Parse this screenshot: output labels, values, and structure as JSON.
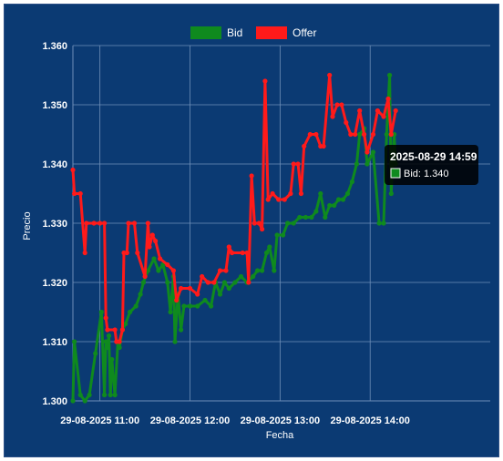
{
  "colors": {
    "background": "#0b3a73",
    "grid": "#6f8fb8",
    "bid": "#0f8a1e",
    "offer": "#ff1a1a",
    "text": "#ffffff",
    "tooltip_bg": "#000000"
  },
  "chart_data": {
    "type": "line",
    "title": "",
    "xlabel": "Fecha",
    "ylabel": "Precio",
    "x_range": [
      "2025-08-29 10:42",
      "2025-08-29 15:20"
    ],
    "ylim": [
      1.3,
      1.36
    ],
    "y_ticks": [
      "1.300",
      "1.310",
      "1.320",
      "1.330",
      "1.340",
      "1.350",
      "1.360"
    ],
    "x_ticks": [
      {
        "t": "2025-08-29 11:00",
        "label": "29-08-2025 11:00"
      },
      {
        "t": "2025-08-29 12:00",
        "label": "29-08-2025 12:00"
      },
      {
        "t": "2025-08-29 13:00",
        "label": "29-08-2025 13:00"
      },
      {
        "t": "2025-08-29 14:00",
        "label": "29-08-2025 14:00"
      }
    ],
    "grid": true,
    "legend_position": "top-center",
    "legend": [
      "Bid",
      "Offer"
    ],
    "series": [
      {
        "name": "Bid",
        "points": [
          [
            "2025-08-29 10:42",
            1.3
          ],
          [
            "2025-08-29 10:43",
            1.31
          ],
          [
            "2025-08-29 10:47",
            1.301
          ],
          [
            "2025-08-29 10:50",
            1.3
          ],
          [
            "2025-08-29 10:53",
            1.301
          ],
          [
            "2025-08-29 10:57",
            1.308
          ],
          [
            "2025-08-29 11:01",
            1.315
          ],
          [
            "2025-08-29 11:03",
            1.301
          ],
          [
            "2025-08-29 11:04",
            1.31
          ],
          [
            "2025-08-29 11:05",
            1.309
          ],
          [
            "2025-08-29 11:06",
            1.311
          ],
          [
            "2025-08-29 11:07",
            1.301
          ],
          [
            "2025-08-29 11:08",
            1.307
          ],
          [
            "2025-08-29 11:10",
            1.301
          ],
          [
            "2025-08-29 11:12",
            1.31
          ],
          [
            "2025-08-29 11:13",
            1.309
          ],
          [
            "2025-08-29 11:15",
            1.312
          ],
          [
            "2025-08-29 11:17",
            1.313
          ],
          [
            "2025-08-29 11:20",
            1.315
          ],
          [
            "2025-08-29 11:24",
            1.316
          ],
          [
            "2025-08-29 11:27",
            1.318
          ],
          [
            "2025-08-29 11:29",
            1.32
          ],
          [
            "2025-08-29 11:32",
            1.322
          ],
          [
            "2025-08-29 11:36",
            1.324
          ],
          [
            "2025-08-29 11:39",
            1.322
          ],
          [
            "2025-08-29 11:42",
            1.323
          ],
          [
            "2025-08-29 11:45",
            1.32
          ],
          [
            "2025-08-29 11:47",
            1.315
          ],
          [
            "2025-08-29 11:49",
            1.321
          ],
          [
            "2025-08-29 11:50",
            1.31
          ],
          [
            "2025-08-29 11:52",
            1.318
          ],
          [
            "2025-08-29 11:54",
            1.312
          ],
          [
            "2025-08-29 11:56",
            1.316
          ],
          [
            "2025-08-29 12:00",
            1.316
          ],
          [
            "2025-08-29 12:05",
            1.316
          ],
          [
            "2025-08-29 12:10",
            1.317
          ],
          [
            "2025-08-29 12:14",
            1.316
          ],
          [
            "2025-08-29 12:17",
            1.32
          ],
          [
            "2025-08-29 12:20",
            1.318
          ],
          [
            "2025-08-29 12:23",
            1.32
          ],
          [
            "2025-08-29 12:26",
            1.319
          ],
          [
            "2025-08-29 12:30",
            1.32
          ],
          [
            "2025-08-29 12:34",
            1.321
          ],
          [
            "2025-08-29 12:38",
            1.32
          ],
          [
            "2025-08-29 12:42",
            1.321
          ],
          [
            "2025-08-29 12:45",
            1.322
          ],
          [
            "2025-08-29 12:48",
            1.322
          ],
          [
            "2025-08-29 12:51",
            1.325
          ],
          [
            "2025-08-29 12:53",
            1.326
          ],
          [
            "2025-08-29 12:56",
            1.322
          ],
          [
            "2025-08-29 12:58",
            1.328
          ],
          [
            "2025-08-29 13:02",
            1.328
          ],
          [
            "2025-08-29 13:05",
            1.33
          ],
          [
            "2025-08-29 13:09",
            1.33
          ],
          [
            "2025-08-29 13:13",
            1.331
          ],
          [
            "2025-08-29 13:17",
            1.331
          ],
          [
            "2025-08-29 13:21",
            1.331
          ],
          [
            "2025-08-29 13:24",
            1.332
          ],
          [
            "2025-08-29 13:27",
            1.335
          ],
          [
            "2025-08-29 13:30",
            1.331
          ],
          [
            "2025-08-29 13:33",
            1.333
          ],
          [
            "2025-08-29 13:36",
            1.333
          ],
          [
            "2025-08-29 13:39",
            1.334
          ],
          [
            "2025-08-29 13:42",
            1.334
          ],
          [
            "2025-08-29 13:45",
            1.335
          ],
          [
            "2025-08-29 13:48",
            1.337
          ],
          [
            "2025-08-29 13:51",
            1.34
          ],
          [
            "2025-08-29 13:53",
            1.345
          ],
          [
            "2025-08-29 13:56",
            1.346
          ],
          [
            "2025-08-29 13:58",
            1.34
          ],
          [
            "2025-08-29 14:02",
            1.342
          ],
          [
            "2025-08-29 14:06",
            1.33
          ],
          [
            "2025-08-29 14:09",
            1.33
          ],
          [
            "2025-08-29 14:11",
            1.345
          ],
          [
            "2025-08-29 14:13",
            1.355
          ],
          [
            "2025-08-29 14:14",
            1.335
          ],
          [
            "2025-08-29 14:16",
            1.345
          ],
          [
            "2025-08-29 14:17",
            1.34
          ]
        ]
      },
      {
        "name": "Offer",
        "points": [
          [
            "2025-08-29 10:42",
            1.339
          ],
          [
            "2025-08-29 10:43",
            1.335
          ],
          [
            "2025-08-29 10:47",
            1.335
          ],
          [
            "2025-08-29 10:50",
            1.325
          ],
          [
            "2025-08-29 10:51",
            1.33
          ],
          [
            "2025-08-29 10:56",
            1.33
          ],
          [
            "2025-08-29 11:00",
            1.33
          ],
          [
            "2025-08-29 11:03",
            1.33
          ],
          [
            "2025-08-29 11:04",
            1.314
          ],
          [
            "2025-08-29 11:05",
            1.312
          ],
          [
            "2025-08-29 11:10",
            1.312
          ],
          [
            "2025-08-29 11:11",
            1.31
          ],
          [
            "2025-08-29 11:13",
            1.31
          ],
          [
            "2025-08-29 11:15",
            1.312
          ],
          [
            "2025-08-29 11:16",
            1.325
          ],
          [
            "2025-08-29 11:18",
            1.325
          ],
          [
            "2025-08-29 11:19",
            1.33
          ],
          [
            "2025-08-29 11:23",
            1.33
          ],
          [
            "2025-08-29 11:25",
            1.325
          ],
          [
            "2025-08-29 11:30",
            1.321
          ],
          [
            "2025-08-29 11:32",
            1.33
          ],
          [
            "2025-08-29 11:33",
            1.326
          ],
          [
            "2025-08-29 11:35",
            1.328
          ],
          [
            "2025-08-29 11:37",
            1.327
          ],
          [
            "2025-08-29 11:40",
            1.324
          ],
          [
            "2025-08-29 11:45",
            1.323
          ],
          [
            "2025-08-29 11:49",
            1.322
          ],
          [
            "2025-08-29 11:51",
            1.317
          ],
          [
            "2025-08-29 11:54",
            1.319
          ],
          [
            "2025-08-29 12:00",
            1.319
          ],
          [
            "2025-08-29 12:05",
            1.318
          ],
          [
            "2025-08-29 12:08",
            1.321
          ],
          [
            "2025-08-29 12:12",
            1.32
          ],
          [
            "2025-08-29 12:16",
            1.32
          ],
          [
            "2025-08-29 12:20",
            1.322
          ],
          [
            "2025-08-29 12:24",
            1.322
          ],
          [
            "2025-08-29 12:26",
            1.326
          ],
          [
            "2025-08-29 12:28",
            1.325
          ],
          [
            "2025-08-29 12:35",
            1.325
          ],
          [
            "2025-08-29 12:38",
            1.325
          ],
          [
            "2025-08-29 12:39",
            1.32
          ],
          [
            "2025-08-29 12:41",
            1.338
          ],
          [
            "2025-08-29 12:43",
            1.33
          ],
          [
            "2025-08-29 12:46",
            1.33
          ],
          [
            "2025-08-29 12:48",
            1.329
          ],
          [
            "2025-08-29 12:50",
            1.354
          ],
          [
            "2025-08-29 12:52",
            1.334
          ],
          [
            "2025-08-29 12:55",
            1.335
          ],
          [
            "2025-08-29 12:59",
            1.334
          ],
          [
            "2025-08-29 13:03",
            1.334
          ],
          [
            "2025-08-29 13:07",
            1.335
          ],
          [
            "2025-08-29 13:09",
            1.34
          ],
          [
            "2025-08-29 13:12",
            1.34
          ],
          [
            "2025-08-29 13:14",
            1.335
          ],
          [
            "2025-08-29 13:16",
            1.343
          ],
          [
            "2025-08-29 13:20",
            1.345
          ],
          [
            "2025-08-29 13:24",
            1.345
          ],
          [
            "2025-08-29 13:27",
            1.343
          ],
          [
            "2025-08-29 13:29",
            1.343
          ],
          [
            "2025-08-29 13:33",
            1.355
          ],
          [
            "2025-08-29 13:35",
            1.348
          ],
          [
            "2025-08-29 13:38",
            1.35
          ],
          [
            "2025-08-29 13:41",
            1.35
          ],
          [
            "2025-08-29 13:44",
            1.347
          ],
          [
            "2025-08-29 13:47",
            1.345
          ],
          [
            "2025-08-29 13:50",
            1.345
          ],
          [
            "2025-08-29 13:53",
            1.349
          ],
          [
            "2025-08-29 13:56",
            1.345
          ],
          [
            "2025-08-29 13:58",
            1.342
          ],
          [
            "2025-08-29 14:02",
            1.345
          ],
          [
            "2025-08-29 14:05",
            1.349
          ],
          [
            "2025-08-29 14:09",
            1.348
          ],
          [
            "2025-08-29 14:12",
            1.351
          ],
          [
            "2025-08-29 14:14",
            1.345
          ],
          [
            "2025-08-29 14:17",
            1.349
          ]
        ]
      }
    ],
    "tooltip": {
      "title": "2025-08-29 14:59",
      "series": "Bid",
      "label": "Bid: 1.340"
    }
  }
}
